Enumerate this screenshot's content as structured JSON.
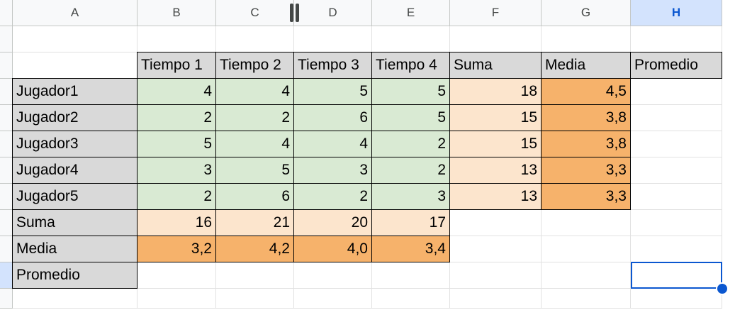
{
  "columns": [
    "A",
    "B",
    "C",
    "D",
    "E",
    "F",
    "G",
    "H"
  ],
  "selected_column": "H",
  "selected_cell": "H10",
  "rows": [
    {
      "row": 1,
      "cells": {}
    },
    {
      "row": 2,
      "cells": {
        "B": {
          "v": "Tiempo 1",
          "style": "gray"
        },
        "C": {
          "v": "Tiempo 2",
          "style": "gray"
        },
        "D": {
          "v": "Tiempo 3",
          "style": "gray"
        },
        "E": {
          "v": "Tiempo 4",
          "style": "gray"
        },
        "F": {
          "v": "Suma",
          "style": "gray"
        },
        "G": {
          "v": "Media",
          "style": "gray"
        },
        "H": {
          "v": "Promedio",
          "style": "gray"
        }
      }
    },
    {
      "row": 3,
      "cells": {
        "A": {
          "v": "Jugador1",
          "style": "gray"
        },
        "B": {
          "v": "4",
          "style": "green",
          "num": true
        },
        "C": {
          "v": "4",
          "style": "green",
          "num": true
        },
        "D": {
          "v": "5",
          "style": "green",
          "num": true
        },
        "E": {
          "v": "5",
          "style": "green",
          "num": true
        },
        "F": {
          "v": "18",
          "style": "peach",
          "num": true
        },
        "G": {
          "v": "4,5",
          "style": "orange",
          "num": true
        }
      }
    },
    {
      "row": 4,
      "cells": {
        "A": {
          "v": "Jugador2",
          "style": "gray"
        },
        "B": {
          "v": "2",
          "style": "green",
          "num": true
        },
        "C": {
          "v": "2",
          "style": "green",
          "num": true
        },
        "D": {
          "v": "6",
          "style": "green",
          "num": true
        },
        "E": {
          "v": "5",
          "style": "green",
          "num": true
        },
        "F": {
          "v": "15",
          "style": "peach",
          "num": true
        },
        "G": {
          "v": "3,8",
          "style": "orange",
          "num": true
        }
      }
    },
    {
      "row": 5,
      "cells": {
        "A": {
          "v": "Jugador3",
          "style": "gray"
        },
        "B": {
          "v": "5",
          "style": "green",
          "num": true
        },
        "C": {
          "v": "4",
          "style": "green",
          "num": true
        },
        "D": {
          "v": "4",
          "style": "green",
          "num": true
        },
        "E": {
          "v": "2",
          "style": "green",
          "num": true
        },
        "F": {
          "v": "15",
          "style": "peach",
          "num": true
        },
        "G": {
          "v": "3,8",
          "style": "orange",
          "num": true
        }
      }
    },
    {
      "row": 6,
      "cells": {
        "A": {
          "v": "Jugador4",
          "style": "gray"
        },
        "B": {
          "v": "3",
          "style": "green",
          "num": true
        },
        "C": {
          "v": "5",
          "style": "green",
          "num": true
        },
        "D": {
          "v": "3",
          "style": "green",
          "num": true
        },
        "E": {
          "v": "2",
          "style": "green",
          "num": true
        },
        "F": {
          "v": "13",
          "style": "peach",
          "num": true
        },
        "G": {
          "v": "3,3",
          "style": "orange",
          "num": true
        }
      }
    },
    {
      "row": 7,
      "cells": {
        "A": {
          "v": "Jugador5",
          "style": "gray"
        },
        "B": {
          "v": "2",
          "style": "green",
          "num": true
        },
        "C": {
          "v": "6",
          "style": "green",
          "num": true
        },
        "D": {
          "v": "2",
          "style": "green",
          "num": true
        },
        "E": {
          "v": "3",
          "style": "green",
          "num": true
        },
        "F": {
          "v": "13",
          "style": "peach",
          "num": true
        },
        "G": {
          "v": "3,3",
          "style": "orange",
          "num": true
        }
      }
    },
    {
      "row": 8,
      "cells": {
        "A": {
          "v": "Suma",
          "style": "gray"
        },
        "B": {
          "v": "16",
          "style": "peach",
          "num": true
        },
        "C": {
          "v": "21",
          "style": "peach",
          "num": true
        },
        "D": {
          "v": "20",
          "style": "peach",
          "num": true
        },
        "E": {
          "v": "17",
          "style": "peach",
          "num": true
        }
      }
    },
    {
      "row": 9,
      "cells": {
        "A": {
          "v": "Media",
          "style": "gray"
        },
        "B": {
          "v": "3,2",
          "style": "orange",
          "num": true
        },
        "C": {
          "v": "4,2",
          "style": "orange",
          "num": true
        },
        "D": {
          "v": "4,0",
          "style": "orange",
          "num": true
        },
        "E": {
          "v": "3,4",
          "style": "orange",
          "num": true
        }
      }
    },
    {
      "row": 10,
      "cells": {
        "A": {
          "v": "Promedio",
          "style": "gray"
        }
      }
    },
    {
      "row": 11,
      "cells": {}
    }
  ],
  "colors": {
    "gray": "#d9d9d9",
    "green": "#d9ead3",
    "peach": "#fce5cd",
    "orange": "#f6b26b",
    "selection": "#0b57d0"
  }
}
